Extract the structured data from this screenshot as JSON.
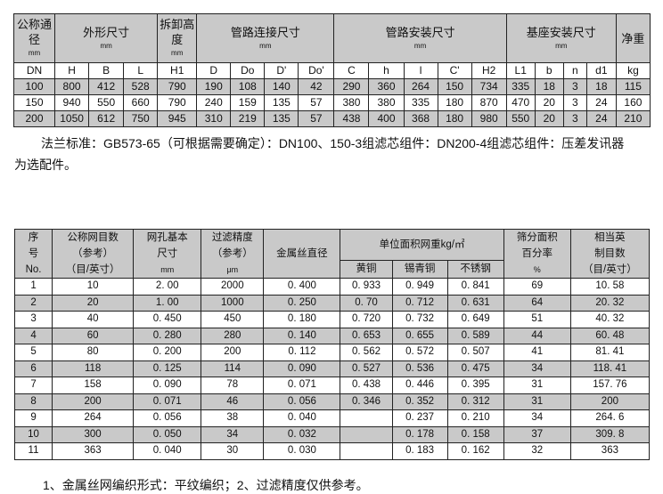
{
  "table1": {
    "groups": {
      "dn": "公称通径",
      "dn_unit": "mm",
      "outer": "外形尺寸",
      "outer_unit": "mm",
      "remove": "拆卸高度",
      "remove_unit": "mm",
      "pipe_conn": "管路连接尺寸",
      "pipe_conn_unit": "mm",
      "pipe_inst": "管路安装尺寸",
      "pipe_inst_unit": "mm",
      "base": "基座安装尺寸",
      "base_unit": "mm",
      "weight": "净重"
    },
    "columns": [
      "DN",
      "H",
      "B",
      "L",
      "H1",
      "D",
      "Do",
      "D'",
      "Do'",
      "C",
      "h",
      "l",
      "C'",
      "H2",
      "L1",
      "b",
      "n",
      "d1",
      "kg"
    ],
    "rows": [
      [
        "100",
        "800",
        "412",
        "528",
        "790",
        "190",
        "108",
        "140",
        "42",
        "290",
        "360",
        "264",
        "150",
        "734",
        "335",
        "18",
        "3",
        "18",
        "115"
      ],
      [
        "150",
        "940",
        "550",
        "660",
        "790",
        "240",
        "159",
        "135",
        "57",
        "380",
        "380",
        "335",
        "180",
        "870",
        "470",
        "20",
        "3",
        "24",
        "160"
      ],
      [
        "200",
        "1050",
        "612",
        "750",
        "945",
        "310",
        "219",
        "135",
        "57",
        "438",
        "400",
        "368",
        "180",
        "980",
        "550",
        "20",
        "3",
        "24",
        "210"
      ]
    ]
  },
  "note1_line1": "法兰标准：GB573-65（可根据需要确定）：DN100、150-3组滤芯组件：DN200-4组滤芯组件：压差发讯器",
  "note1_line2": "为选配件。",
  "table2": {
    "headers": {
      "no": [
        "序",
        "号",
        "No."
      ],
      "mesh": [
        "公称网目数",
        "（参考）",
        "（目/英寸）"
      ],
      "hole": [
        "网孔基本",
        "尺寸",
        "mm"
      ],
      "precision": [
        "过滤精度",
        "（参考）",
        "μm"
      ],
      "wire": "金属丝直径",
      "weight": "单位面积网重kg/㎡",
      "brass": "黄铜",
      "tin_bronze": "锡青铜",
      "stainless": "不锈钢",
      "area": [
        "筛分面积",
        "百分率",
        "%"
      ],
      "eq": [
        "相当英",
        "制目数",
        "（目/英寸）"
      ]
    },
    "rows": [
      [
        "1",
        "10",
        "2. 00",
        "2000",
        "0. 400",
        "0. 933",
        "0. 949",
        "0. 841",
        "69",
        "10. 58"
      ],
      [
        "2",
        "20",
        "1. 00",
        "1000",
        "0. 250",
        "0. 70",
        "0. 712",
        "0. 631",
        "64",
        "20. 32"
      ],
      [
        "3",
        "40",
        "0. 450",
        "450",
        "0. 180",
        "0. 720",
        "0. 732",
        "0. 649",
        "51",
        "40. 32"
      ],
      [
        "4",
        "60",
        "0. 280",
        "280",
        "0. 140",
        "0. 653",
        "0. 655",
        "0. 589",
        "44",
        "60. 48"
      ],
      [
        "5",
        "80",
        "0. 200",
        "200",
        "0. 112",
        "0. 562",
        "0. 572",
        "0. 507",
        "41",
        "81. 41"
      ],
      [
        "6",
        "118",
        "0. 125",
        "114",
        "0. 090",
        "0. 527",
        "0. 536",
        "0. 475",
        "34",
        "118. 41"
      ],
      [
        "7",
        "158",
        "0. 090",
        "78",
        "0. 071",
        "0. 438",
        "0. 446",
        "0. 395",
        "31",
        "157. 76"
      ],
      [
        "8",
        "200",
        "0. 071",
        "46",
        "0. 056",
        "0. 346",
        "0. 352",
        "0. 312",
        "31",
        "200"
      ],
      [
        "9",
        "264",
        "0. 056",
        "38",
        "0. 040",
        "",
        "0. 237",
        "0. 210",
        "34",
        "264. 6"
      ],
      [
        "10",
        "300",
        "0. 050",
        "34",
        "0. 032",
        "",
        "0. 178",
        "0. 158",
        "37",
        "309. 8"
      ],
      [
        "11",
        "363",
        "0. 040",
        "30",
        "0. 030",
        "",
        "0. 183",
        "0. 162",
        "32",
        "363"
      ]
    ]
  },
  "note2": "1、金属丝网编织形式：平纹编织；2、过滤精度仅供参考。"
}
